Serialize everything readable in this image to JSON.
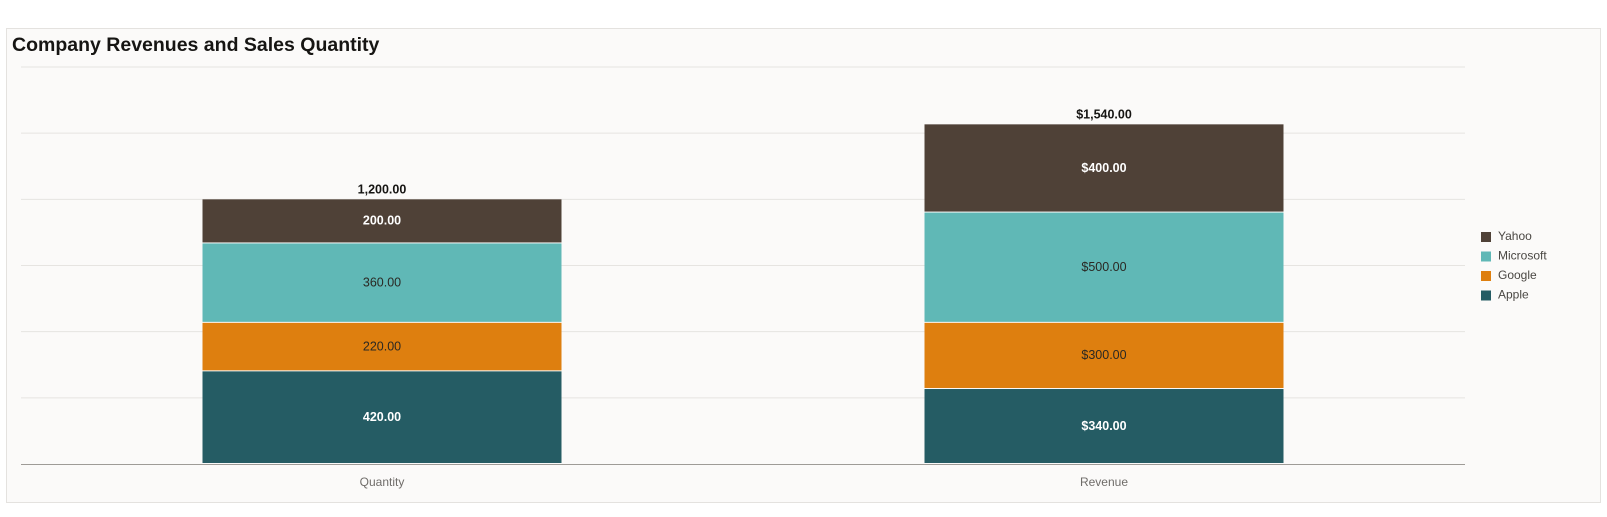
{
  "title": "Company Revenues and Sales Quantity",
  "chart_data": {
    "type": "bar",
    "stacked": true,
    "title": "Company Revenues and Sales Quantity",
    "categories": [
      "Quantity",
      "Revenue"
    ],
    "series": [
      {
        "name": "Apple",
        "color": "#255c64",
        "values": [
          420,
          340
        ],
        "labels": [
          "420.00",
          "$340.00"
        ],
        "label_color": "#ffffff"
      },
      {
        "name": "Google",
        "color": "#de7f0f",
        "values": [
          220,
          300
        ],
        "labels": [
          "220.00",
          "$300.00"
        ],
        "label_color": "#2a2823"
      },
      {
        "name": "Microsoft",
        "color": "#60b8b6",
        "values": [
          360,
          500
        ],
        "labels": [
          "360.00",
          "$500.00"
        ],
        "label_color": "#2a2823"
      },
      {
        "name": "Yahoo",
        "color": "#4f4137",
        "values": [
          200,
          400
        ],
        "labels": [
          "200.00",
          "$400.00"
        ],
        "label_color": "#ffffff"
      }
    ],
    "totals": [
      "1,200.00",
      "$1,540.00"
    ],
    "ylim": [
      0,
      1800
    ],
    "grid": true,
    "legend": {
      "position": "right",
      "order": [
        "Yahoo",
        "Microsoft",
        "Google",
        "Apple"
      ]
    }
  }
}
